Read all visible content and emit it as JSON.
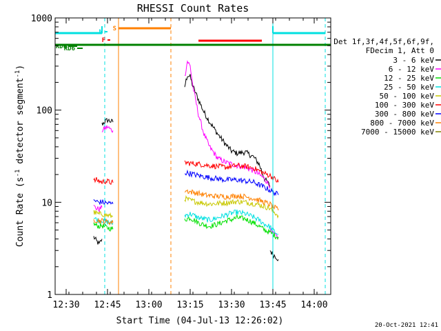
{
  "chart_data": {
    "type": "line",
    "title": "RHESSI Count Rates",
    "xlabel": "Start Time (04-Jul-13 12:26:02)",
    "ylabel": "Count Rate (s⁻¹ detector segment⁻¹)",
    "ylabel_parts": {
      "pre": "Count Rate (s",
      "sup1": "-1",
      "mid": " detector segment",
      "sup2": "-1",
      "post": ")"
    },
    "yscale": "log",
    "xlim": [
      "12:26",
      "14:06"
    ],
    "ylim": [
      1,
      1000
    ],
    "x_ticks": [
      "12:30",
      "12:45",
      "13:00",
      "13:15",
      "13:30",
      "13:45",
      "14:00"
    ],
    "y_ticks": [
      "1",
      "10",
      "100",
      "1000"
    ],
    "legend_header": [
      "Det 1f,3f,4f,5f,6f,9f,",
      "FDecim 1, Att 0"
    ],
    "legend_position": "right",
    "series": [
      {
        "name": "3 - 6 keV",
        "color": "#000000",
        "segments": [
          {
            "x": [
              "12:40",
              "12:41",
              "12:42",
              "12:43"
            ],
            "y": [
              4.2,
              3.8,
              3.5,
              4.0
            ]
          },
          {
            "x": [
              "12:43",
              "12:44",
              "12:45",
              "12:46",
              "12:47"
            ],
            "y": [
              70,
              75,
              78,
              76,
              74
            ]
          },
          {
            "x": [
              "13:13",
              "13:14",
              "13:15",
              "13:16",
              "13:18",
              "13:20",
              "13:22",
              "13:25",
              "13:28",
              "13:30",
              "13:32",
              "13:35",
              "13:38",
              "13:40",
              "13:42",
              "13:44"
            ],
            "y": [
              180,
              240,
              230,
              180,
              130,
              95,
              75,
              55,
              42,
              36,
              34,
              35,
              31,
              26,
              18,
              15
            ]
          },
          {
            "x": [
              "13:44",
              "13:45",
              "13:46",
              "13:47"
            ],
            "y": [
              3.0,
              2.7,
              2.6,
              2.4
            ]
          }
        ]
      },
      {
        "name": "6 - 12 keV",
        "color": "#ff00ff",
        "segments": [
          {
            "x": [
              "12:40",
              "12:41",
              "12:42",
              "12:43"
            ],
            "y": [
              9.0,
              8.6,
              8.4,
              8.8
            ]
          },
          {
            "x": [
              "12:43",
              "12:44",
              "12:45",
              "12:46",
              "12:47"
            ],
            "y": [
              60,
              63,
              66,
              62,
              60
            ]
          },
          {
            "x": [
              "13:13",
              "13:14",
              "13:15",
              "13:16",
              "13:18",
              "13:20",
              "13:22",
              "13:25",
              "13:28",
              "13:30",
              "13:32",
              "13:35",
              "13:38",
              "13:40",
              "13:42",
              "13:44"
            ],
            "y": [
              230,
              340,
              300,
              180,
              90,
              55,
              40,
              30,
              27,
              26,
              25,
              24,
              22,
              20,
              18,
              15
            ]
          },
          {
            "x": [
              "13:44",
              "13:45",
              "13:46",
              "13:47"
            ],
            "y": [
              5.0,
              4.6,
              4.3,
              4.2
            ]
          }
        ]
      },
      {
        "name": "12 - 25 keV",
        "color": "#00e000",
        "segments": [
          {
            "x": [
              "12:40",
              "12:41",
              "12:42",
              "12:43",
              "12:44",
              "12:45",
              "12:46",
              "12:47"
            ],
            "y": [
              5.8,
              5.6,
              5.5,
              5.6,
              5.4,
              5.3,
              5.2,
              5.1
            ]
          },
          {
            "x": [
              "13:13",
              "13:15",
              "13:18",
              "13:20",
              "13:22",
              "13:25",
              "13:28",
              "13:30",
              "13:32",
              "13:35",
              "13:38",
              "13:40",
              "13:42",
              "13:44",
              "13:45",
              "13:46",
              "13:47"
            ],
            "y": [
              6.5,
              6.8,
              6.0,
              5.7,
              5.5,
              5.8,
              6.3,
              6.5,
              6.8,
              6.6,
              6.0,
              5.5,
              5.0,
              4.7,
              4.5,
              4.3,
              4.2
            ]
          }
        ]
      },
      {
        "name": "25 - 50 keV",
        "color": "#00e0e0",
        "segments": [
          {
            "x": [
              "12:40",
              "12:41",
              "12:42",
              "12:43",
              "12:44",
              "12:45",
              "12:46",
              "12:47"
            ],
            "y": [
              6.8,
              6.5,
              6.3,
              6.4,
              6.2,
              6.1,
              6.0,
              5.9
            ]
          },
          {
            "x": [
              "13:13",
              "13:15",
              "13:18",
              "13:20",
              "13:22",
              "13:25",
              "13:28",
              "13:30",
              "13:32",
              "13:35",
              "13:38",
              "13:40",
              "13:42",
              "13:44",
              "13:45",
              "13:46",
              "13:47"
            ],
            "y": [
              7.2,
              7.5,
              6.8,
              6.6,
              6.4,
              6.8,
              7.3,
              7.6,
              7.8,
              7.5,
              6.9,
              6.4,
              5.8,
              5.4,
              5.0,
              4.7,
              4.5
            ]
          }
        ]
      },
      {
        "name": "50 - 100 keV",
        "color": "#c8c800",
        "segments": [
          {
            "x": [
              "12:40",
              "12:41",
              "12:42",
              "12:43",
              "12:44",
              "12:45",
              "12:46",
              "12:47"
            ],
            "y": [
              7.8,
              7.6,
              7.4,
              7.5,
              7.3,
              7.2,
              7.1,
              7.0
            ]
          },
          {
            "x": [
              "13:13",
              "13:15",
              "13:18",
              "13:20",
              "13:22",
              "13:25",
              "13:28",
              "13:30",
              "13:32",
              "13:35",
              "13:38",
              "13:40",
              "13:42",
              "13:44",
              "13:45",
              "13:46",
              "13:47"
            ],
            "y": [
              11,
              10.5,
              10,
              9.8,
              9.6,
              9.7,
              9.9,
              10,
              10.2,
              10,
              9.7,
              9.4,
              9.0,
              8.6,
              8.0,
              7.6,
              7.2
            ]
          }
        ]
      },
      {
        "name": "100 - 300 keV",
        "color": "#ff0000",
        "segments": [
          {
            "x": [
              "12:40",
              "12:41",
              "12:42",
              "12:43",
              "12:44",
              "12:45",
              "12:46",
              "12:47"
            ],
            "y": [
              17,
              17.5,
              17,
              16.5,
              17,
              16.8,
              16.5,
              16.3
            ]
          },
          {
            "x": [
              "13:13",
              "13:15",
              "13:18",
              "13:20",
              "13:22",
              "13:25",
              "13:28",
              "13:30",
              "13:32",
              "13:35",
              "13:38",
              "13:40",
              "13:42",
              "13:44",
              "13:45",
              "13:46",
              "13:47"
            ],
            "y": [
              27,
              26.5,
              26,
              25.5,
              25,
              24.5,
              24,
              24.5,
              25,
              24.5,
              23.5,
              22,
              20.5,
              19.5,
              18.5,
              17.5,
              16.5
            ]
          }
        ]
      },
      {
        "name": "300 - 800 keV",
        "color": "#0000ff",
        "segments": [
          {
            "x": [
              "12:40",
              "12:41",
              "12:42",
              "12:43",
              "12:44",
              "12:45",
              "12:46",
              "12:47"
            ],
            "y": [
              10.5,
              10.2,
              10,
              10.1,
              9.9,
              9.8,
              9.7,
              9.6
            ]
          },
          {
            "x": [
              "13:13",
              "13:15",
              "13:18",
              "13:20",
              "13:22",
              "13:25",
              "13:28",
              "13:30",
              "13:32",
              "13:35",
              "13:38",
              "13:40",
              "13:42",
              "13:44",
              "13:45",
              "13:46",
              "13:47"
            ],
            "y": [
              21,
              20.5,
              19.5,
              19,
              18.5,
              18,
              17.5,
              17.5,
              17.5,
              17,
              16.5,
              15.5,
              14.5,
              13.5,
              13,
              12.5,
              12
            ]
          }
        ]
      },
      {
        "name": "800 - 7000 keV",
        "color": "#ff8000",
        "segments": [
          {
            "x": [
              "12:40",
              "12:41",
              "12:42",
              "12:43",
              "12:44",
              "12:45",
              "12:46",
              "12:47"
            ],
            "y": [
              6.5,
              6.4,
              6.3,
              6.3,
              6.2,
              6.1,
              6.1,
              6.0
            ]
          },
          {
            "x": [
              "13:13",
              "13:15",
              "13:18",
              "13:20",
              "13:22",
              "13:25",
              "13:28",
              "13:30",
              "13:32",
              "13:35",
              "13:38",
              "13:40",
              "13:42",
              "13:44",
              "13:45",
              "13:46",
              "13:47"
            ],
            "y": [
              13.5,
              13,
              12.5,
              12,
              11.8,
              11.6,
              11.5,
              11.6,
              11.8,
              11.5,
              11,
              10.5,
              10,
              9.5,
              9.0,
              8.6,
              8.2
            ]
          }
        ]
      },
      {
        "name": "7000 - 15000 keV",
        "color": "#808000",
        "segments": []
      }
    ],
    "status_bars": [
      {
        "label": "",
        "color": "#00e0e0",
        "level": "top",
        "x": [
          "12:26",
          "12:43"
        ]
      },
      {
        "label": "",
        "color": "#00e0e0",
        "level": "top",
        "x": [
          "13:45",
          "14:04"
        ]
      },
      {
        "label": "S",
        "color": "#ff8000",
        "level": "orange",
        "x": [
          "12:49",
          "13:08"
        ]
      },
      {
        "label": "N",
        "color": "#00e0e0",
        "level": "n",
        "x": [
          "12:44",
          "12:45"
        ]
      },
      {
        "label": "F",
        "color": "#ff0000",
        "level": "f",
        "x": [
          "12:45",
          "12:46"
        ]
      },
      {
        "label": "",
        "color": "#ff0000",
        "level": "red",
        "x": [
          "13:18",
          "13:41"
        ]
      },
      {
        "label": "RD0",
        "color": "#008000",
        "level": "rd0",
        "x": [
          "12:31",
          "12:34"
        ]
      },
      {
        "label": "RD6",
        "color": "#008000",
        "level": "rd6",
        "x": [
          "12:34",
          "12:36"
        ]
      },
      {
        "label": "",
        "color": "#008000",
        "level": "green",
        "x": [
          "12:26",
          "14:06"
        ]
      }
    ],
    "vertical_markers": [
      {
        "x": "12:26",
        "color": "#00e0e0",
        "style": "solid"
      },
      {
        "x": "12:44",
        "color": "#00e0e0",
        "style": "dashed"
      },
      {
        "x": "12:49",
        "color": "#ff8000",
        "style": "solid"
      },
      {
        "x": "13:08",
        "color": "#ff8000",
        "style": "dashed"
      },
      {
        "x": "13:45",
        "color": "#00e0e0",
        "style": "solid"
      },
      {
        "x": "14:04",
        "color": "#00e0e0",
        "style": "dashed"
      }
    ],
    "timestamp": "20-Oct-2021 12:41"
  }
}
